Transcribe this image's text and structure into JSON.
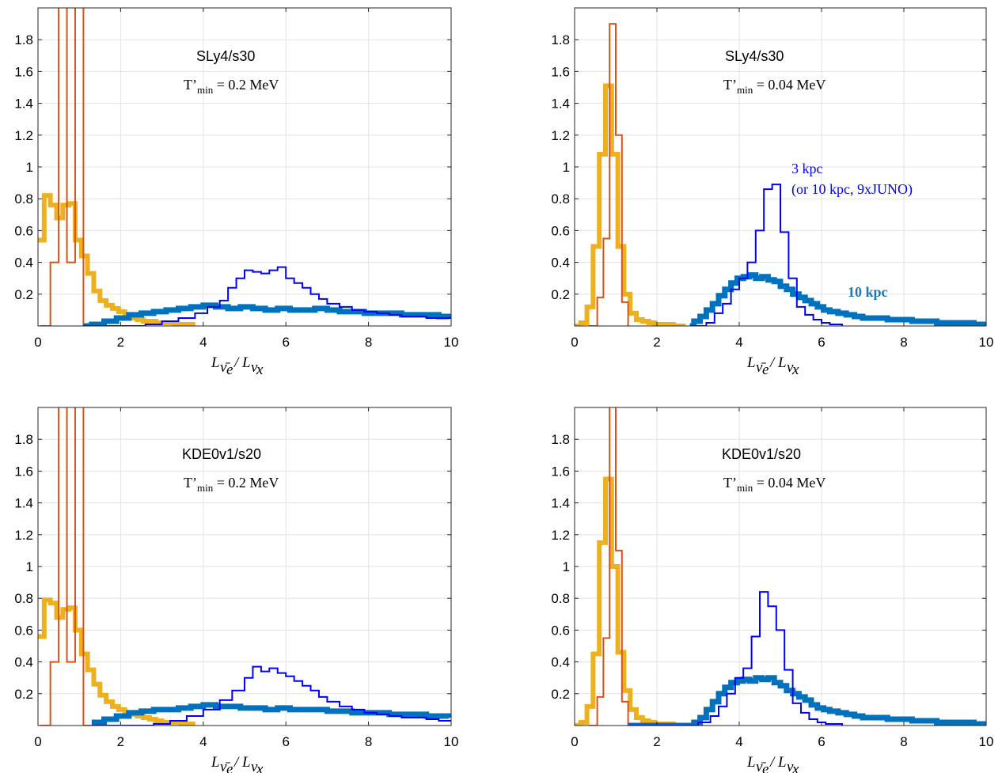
{
  "colors": {
    "thin_orange": "#D95319",
    "thick_yellow": "#EDB120",
    "thick_blue": "#0072BD",
    "thin_blue": "#0000FF",
    "annot_10kpc": "#1F77B4"
  },
  "chart_data": [
    {
      "type": "line",
      "title": "SLy4/s30",
      "subtitle": "T’min = 0.2 MeV",
      "xlabel": "Lν̄e/Lνx",
      "ylabel": "",
      "xlim": [
        0,
        10
      ],
      "ylim": [
        0,
        2
      ],
      "xticks": [
        "0",
        "2",
        "4",
        "6",
        "8",
        "10"
      ],
      "yticks": [
        "0.2",
        "0.4",
        "0.6",
        "0.8",
        "1",
        "1.2",
        "1.4",
        "1.6",
        "1.8"
      ],
      "grid": true,
      "annotations": [],
      "series": [
        {
          "x": [
            0.0,
            0.15,
            0.3,
            0.45,
            0.6,
            0.75,
            0.9,
            1.05,
            1.2,
            1.35,
            1.5,
            1.65,
            1.8,
            1.95,
            2.1,
            2.25,
            2.4,
            2.55,
            2.7,
            2.85,
            3.0,
            3.15,
            3.3,
            3.45,
            3.6,
            3.75
          ],
          "values": [
            0.54,
            0.82,
            0.76,
            0.68,
            0.76,
            0.77,
            0.54,
            0.44,
            0.33,
            0.22,
            0.16,
            0.13,
            0.11,
            0.09,
            0.07,
            0.05,
            0.04,
            0.03,
            0.03,
            0.02,
            0.02,
            0.02,
            0.01,
            0.01,
            0.01,
            0.0
          ]
        },
        {
          "x": [
            0.05,
            0.3,
            0.5,
            0.7,
            0.9,
            1.1,
            1.3
          ],
          "values": [
            0.0,
            0.4,
            2.5,
            0.4,
            2.5,
            0.0,
            0.0
          ]
        },
        {
          "x": [
            1.1,
            1.3,
            1.6,
            1.9,
            2.2,
            2.5,
            2.8,
            3.1,
            3.4,
            3.7,
            4.0,
            4.3,
            4.6,
            4.9,
            5.2,
            5.5,
            5.8,
            6.1,
            6.4,
            6.7,
            7.0,
            7.3,
            7.6,
            7.9,
            8.2,
            8.5,
            8.8,
            9.1,
            9.4,
            9.7,
            9.95
          ],
          "values": [
            0.0,
            0.01,
            0.03,
            0.05,
            0.07,
            0.08,
            0.09,
            0.1,
            0.11,
            0.12,
            0.13,
            0.12,
            0.11,
            0.12,
            0.11,
            0.1,
            0.11,
            0.1,
            0.1,
            0.11,
            0.1,
            0.09,
            0.09,
            0.08,
            0.08,
            0.08,
            0.07,
            0.07,
            0.07,
            0.06,
            0.05
          ]
        },
        {
          "x": [
            1.1,
            2.6,
            3.0,
            3.4,
            3.8,
            4.1,
            4.4,
            4.6,
            4.8,
            5.0,
            5.2,
            5.4,
            5.6,
            5.8,
            6.0,
            6.2,
            6.4,
            6.6,
            6.8,
            7.0,
            7.3,
            7.6,
            7.9,
            8.2,
            8.5,
            8.8,
            9.1,
            9.4,
            9.7,
            10.0
          ],
          "values": [
            0.0,
            0.01,
            0.03,
            0.05,
            0.08,
            0.12,
            0.16,
            0.24,
            0.3,
            0.35,
            0.34,
            0.33,
            0.35,
            0.37,
            0.3,
            0.27,
            0.24,
            0.2,
            0.17,
            0.14,
            0.12,
            0.1,
            0.09,
            0.08,
            0.07,
            0.06,
            0.06,
            0.05,
            0.05,
            0.05
          ]
        }
      ]
    },
    {
      "type": "line",
      "title": "SLy4/s30",
      "subtitle": "T’min = 0.04 MeV",
      "xlabel": "Lν̄e/Lνx",
      "ylabel": "",
      "xlim": [
        0,
        10
      ],
      "ylim": [
        0,
        2
      ],
      "xticks": [
        "0",
        "2",
        "4",
        "6",
        "8",
        "10"
      ],
      "yticks": [
        "0.2",
        "0.4",
        "0.6",
        "0.8",
        "1",
        "1.2",
        "1.4",
        "1.6",
        "1.8"
      ],
      "grid": true,
      "annotations": [
        {
          "text": "3 kpc",
          "color": "#0000FF"
        },
        {
          "text": "(or 10 kpc, 9xJUNO)",
          "color": "#0000FF"
        },
        {
          "text": "10 kpc",
          "color": "#1F77B4"
        }
      ],
      "series": [
        {
          "x": [
            0.0,
            0.15,
            0.3,
            0.45,
            0.6,
            0.75,
            0.9,
            1.05,
            1.2,
            1.35,
            1.5,
            1.65,
            1.8,
            1.95,
            2.1,
            2.25,
            2.4,
            2.55,
            2.7
          ],
          "values": [
            0.0,
            0.02,
            0.12,
            0.5,
            1.08,
            1.51,
            1.08,
            0.5,
            0.2,
            0.08,
            0.04,
            0.03,
            0.02,
            0.01,
            0.01,
            0.01,
            0.0,
            0.0,
            0.0
          ]
        },
        {
          "x": [
            0.35,
            0.55,
            0.7,
            0.85,
            1.0,
            1.15,
            1.3
          ],
          "values": [
            0.0,
            0.18,
            0.55,
            1.9,
            1.2,
            0.15,
            0.0
          ]
        },
        {
          "x": [
            2.8,
            2.9,
            3.05,
            3.2,
            3.35,
            3.5,
            3.65,
            3.8,
            3.95,
            4.1,
            4.25,
            4.4,
            4.55,
            4.7,
            4.85,
            5.0,
            5.15,
            5.3,
            5.45,
            5.6,
            5.75,
            5.9,
            6.05,
            6.2,
            6.4,
            6.6,
            6.8,
            7.0,
            7.3,
            7.6,
            7.9,
            8.2,
            8.5,
            8.8,
            9.1,
            9.4,
            9.7,
            10.0
          ],
          "values": [
            0.0,
            0.03,
            0.06,
            0.1,
            0.14,
            0.19,
            0.23,
            0.27,
            0.3,
            0.31,
            0.32,
            0.3,
            0.31,
            0.29,
            0.28,
            0.25,
            0.23,
            0.2,
            0.18,
            0.16,
            0.14,
            0.12,
            0.1,
            0.09,
            0.08,
            0.07,
            0.06,
            0.05,
            0.05,
            0.04,
            0.04,
            0.03,
            0.03,
            0.02,
            0.02,
            0.02,
            0.01,
            0.0
          ]
        },
        {
          "x": [
            2.8,
            3.2,
            3.4,
            3.6,
            3.8,
            4.0,
            4.2,
            4.4,
            4.6,
            4.8,
            5.0,
            5.2,
            5.4,
            5.6,
            5.8,
            6.0,
            6.2,
            6.5
          ],
          "values": [
            0.0,
            0.02,
            0.08,
            0.14,
            0.23,
            0.3,
            0.4,
            0.6,
            0.86,
            0.89,
            0.59,
            0.3,
            0.12,
            0.07,
            0.04,
            0.02,
            0.01,
            0.0
          ]
        }
      ]
    },
    {
      "type": "line",
      "title": "KDE0v1/s20",
      "subtitle": "T’min = 0.2 MeV",
      "xlabel": "Lν̄e/Lνx",
      "ylabel": "",
      "xlim": [
        0,
        10
      ],
      "ylim": [
        0,
        2
      ],
      "xticks": [
        "0",
        "2",
        "4",
        "6",
        "8",
        "10"
      ],
      "yticks": [
        "0.2",
        "0.4",
        "0.6",
        "0.8",
        "1",
        "1.2",
        "1.4",
        "1.6",
        "1.8"
      ],
      "grid": true,
      "annotations": [],
      "series": [
        {
          "x": [
            0.0,
            0.15,
            0.3,
            0.45,
            0.6,
            0.75,
            0.9,
            1.05,
            1.2,
            1.35,
            1.5,
            1.65,
            1.8,
            1.95,
            2.1,
            2.25,
            2.4,
            2.55,
            2.7,
            2.85,
            3.0,
            3.15,
            3.3,
            3.45,
            3.6,
            3.75
          ],
          "values": [
            0.56,
            0.79,
            0.77,
            0.68,
            0.73,
            0.74,
            0.6,
            0.45,
            0.35,
            0.26,
            0.19,
            0.15,
            0.12,
            0.1,
            0.08,
            0.07,
            0.06,
            0.05,
            0.04,
            0.03,
            0.02,
            0.02,
            0.02,
            0.01,
            0.01,
            0.0
          ]
        },
        {
          "x": [
            0.05,
            0.3,
            0.5,
            0.7,
            0.9,
            1.1,
            1.3
          ],
          "values": [
            0.0,
            0.4,
            2.5,
            0.4,
            2.5,
            0.0,
            0.0
          ]
        },
        {
          "x": [
            1.3,
            1.6,
            1.9,
            2.2,
            2.5,
            2.8,
            3.1,
            3.4,
            3.7,
            4.0,
            4.3,
            4.6,
            4.9,
            5.2,
            5.5,
            5.8,
            6.1,
            6.4,
            6.7,
            7.0,
            7.3,
            7.6,
            7.9,
            8.2,
            8.5,
            8.8,
            9.1,
            9.4,
            9.7,
            9.95
          ],
          "values": [
            0.02,
            0.04,
            0.06,
            0.08,
            0.09,
            0.1,
            0.1,
            0.11,
            0.12,
            0.13,
            0.12,
            0.12,
            0.11,
            0.11,
            0.1,
            0.11,
            0.1,
            0.1,
            0.1,
            0.09,
            0.09,
            0.08,
            0.08,
            0.08,
            0.07,
            0.07,
            0.07,
            0.06,
            0.06,
            0.05
          ]
        },
        {
          "x": [
            1.3,
            2.8,
            3.2,
            3.6,
            4.0,
            4.4,
            4.7,
            5.0,
            5.2,
            5.4,
            5.6,
            5.8,
            6.0,
            6.2,
            6.4,
            6.6,
            6.8,
            7.0,
            7.3,
            7.6,
            7.9,
            8.2,
            8.5,
            8.8,
            9.1,
            9.4,
            9.7,
            10.0
          ],
          "values": [
            0.0,
            0.01,
            0.03,
            0.06,
            0.1,
            0.16,
            0.22,
            0.3,
            0.37,
            0.34,
            0.36,
            0.33,
            0.31,
            0.28,
            0.25,
            0.22,
            0.18,
            0.15,
            0.12,
            0.1,
            0.08,
            0.07,
            0.06,
            0.05,
            0.05,
            0.04,
            0.03,
            0.03
          ]
        }
      ]
    },
    {
      "type": "line",
      "title": "KDE0v1/s20",
      "subtitle": "T’min = 0.04 MeV",
      "xlabel": "Lν̄e/Lνx",
      "ylabel": "",
      "xlim": [
        0,
        10
      ],
      "ylim": [
        0,
        2
      ],
      "xticks": [
        "0",
        "2",
        "4",
        "6",
        "8",
        "10"
      ],
      "yticks": [
        "0.2",
        "0.4",
        "0.6",
        "0.8",
        "1",
        "1.2",
        "1.4",
        "1.6",
        "1.8"
      ],
      "grid": true,
      "annotations": [],
      "series": [
        {
          "x": [
            0.0,
            0.15,
            0.3,
            0.45,
            0.6,
            0.75,
            0.9,
            1.05,
            1.2,
            1.35,
            1.5,
            1.65,
            1.8,
            1.95,
            2.1,
            2.25,
            2.4,
            2.55,
            2.7
          ],
          "values": [
            0.0,
            0.02,
            0.12,
            0.45,
            1.15,
            1.55,
            1.0,
            0.46,
            0.22,
            0.1,
            0.05,
            0.03,
            0.02,
            0.01,
            0.01,
            0.01,
            0.0,
            0.0,
            0.0
          ]
        },
        {
          "x": [
            0.35,
            0.55,
            0.7,
            0.85,
            1.0,
            1.15,
            1.3
          ],
          "values": [
            0.0,
            0.18,
            0.55,
            2.5,
            1.1,
            0.15,
            0.0
          ]
        },
        {
          "x": [
            1.3,
            2.9,
            3.05,
            3.2,
            3.35,
            3.5,
            3.65,
            3.8,
            3.95,
            4.1,
            4.25,
            4.4,
            4.55,
            4.7,
            4.85,
            5.0,
            5.15,
            5.3,
            5.45,
            5.6,
            5.75,
            5.9,
            6.05,
            6.2,
            6.4,
            6.6,
            6.8,
            7.0,
            7.3,
            7.6,
            7.9,
            8.2,
            8.5,
            8.8,
            9.1,
            9.4,
            9.7,
            10.0
          ],
          "values": [
            0.0,
            0.02,
            0.05,
            0.1,
            0.15,
            0.2,
            0.24,
            0.27,
            0.28,
            0.29,
            0.28,
            0.3,
            0.29,
            0.3,
            0.27,
            0.25,
            0.22,
            0.2,
            0.18,
            0.16,
            0.13,
            0.11,
            0.1,
            0.09,
            0.08,
            0.07,
            0.06,
            0.05,
            0.05,
            0.04,
            0.04,
            0.03,
            0.03,
            0.02,
            0.02,
            0.02,
            0.01,
            0.0
          ]
        },
        {
          "x": [
            1.3,
            3.0,
            3.3,
            3.5,
            3.7,
            3.9,
            4.1,
            4.3,
            4.5,
            4.7,
            4.9,
            5.1,
            5.3,
            5.5,
            5.7,
            5.9,
            6.1,
            6.5
          ],
          "values": [
            0.0,
            0.02,
            0.06,
            0.12,
            0.2,
            0.3,
            0.36,
            0.56,
            0.84,
            0.75,
            0.6,
            0.35,
            0.14,
            0.08,
            0.04,
            0.02,
            0.01,
            0.0
          ]
        }
      ]
    }
  ]
}
